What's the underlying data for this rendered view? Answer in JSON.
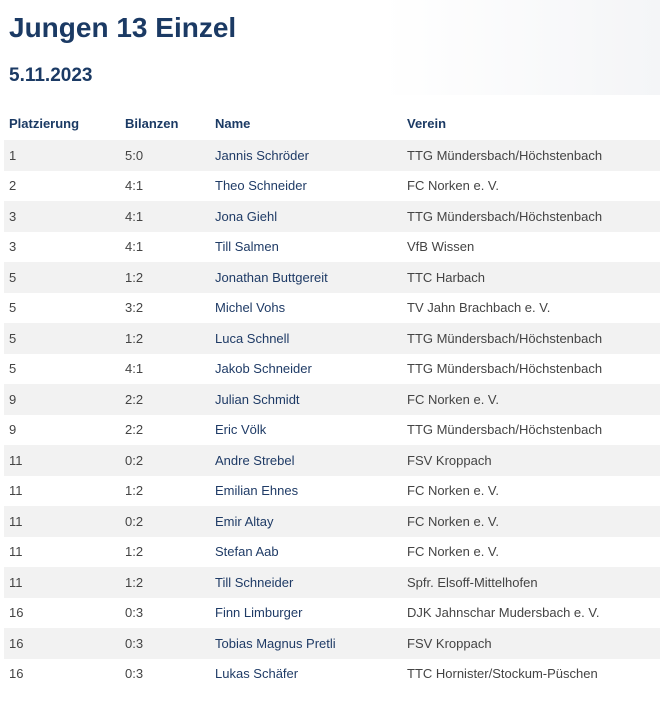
{
  "page": {
    "title": "Jungen 13 Einzel",
    "date": "5.11.2023"
  },
  "table": {
    "headers": {
      "platzierung": "Platzierung",
      "bilanzen": "Bilanzen",
      "name": "Name",
      "verein": "Verein"
    },
    "rows": [
      {
        "platz": "1",
        "bilanz": "5:0",
        "name": "Jannis Schröder",
        "verein": "TTG Mündersbach/Höchstenbach"
      },
      {
        "platz": "2",
        "bilanz": "4:1",
        "name": "Theo Schneider",
        "verein": "FC Norken e. V."
      },
      {
        "platz": "3",
        "bilanz": "4:1",
        "name": "Jona Giehl",
        "verein": "TTG Mündersbach/Höchstenbach"
      },
      {
        "platz": "3",
        "bilanz": "4:1",
        "name": "Till Salmen",
        "verein": "VfB Wissen"
      },
      {
        "platz": "5",
        "bilanz": "1:2",
        "name": "Jonathan Buttgereit",
        "verein": "TTC Harbach"
      },
      {
        "platz": "5",
        "bilanz": "3:2",
        "name": "Michel Vohs",
        "verein": "TV Jahn Brachbach e. V."
      },
      {
        "platz": "5",
        "bilanz": "1:2",
        "name": "Luca Schnell",
        "verein": "TTG Mündersbach/Höchstenbach"
      },
      {
        "platz": "5",
        "bilanz": "4:1",
        "name": "Jakob Schneider",
        "verein": "TTG Mündersbach/Höchstenbach"
      },
      {
        "platz": "9",
        "bilanz": "2:2",
        "name": "Julian Schmidt",
        "verein": "FC Norken e. V."
      },
      {
        "platz": "9",
        "bilanz": "2:2",
        "name": "Eric Völk",
        "verein": "TTG Mündersbach/Höchstenbach"
      },
      {
        "platz": "11",
        "bilanz": "0:2",
        "name": "Andre Strebel",
        "verein": "FSV Kroppach"
      },
      {
        "platz": "11",
        "bilanz": "1:2",
        "name": "Emilian Ehnes",
        "verein": "FC Norken e. V."
      },
      {
        "platz": "11",
        "bilanz": "0:2",
        "name": "Emir Altay",
        "verein": "FC Norken e. V."
      },
      {
        "platz": "11",
        "bilanz": "1:2",
        "name": "Stefan Aab",
        "verein": "FC Norken e. V."
      },
      {
        "platz": "11",
        "bilanz": "1:2",
        "name": "Till Schneider",
        "verein": "Spfr. Elsoff-Mittelhofen"
      },
      {
        "platz": "16",
        "bilanz": "0:3",
        "name": "Finn Limburger",
        "verein": "DJK Jahnschar Mudersbach e. V."
      },
      {
        "platz": "16",
        "bilanz": "0:3",
        "name": "Tobias Magnus Pretli",
        "verein": "FSV Kroppach"
      },
      {
        "platz": "16",
        "bilanz": "0:3",
        "name": "Lukas Schäfer",
        "verein": "TTC Hornister/Stockum-Püschen"
      }
    ]
  }
}
